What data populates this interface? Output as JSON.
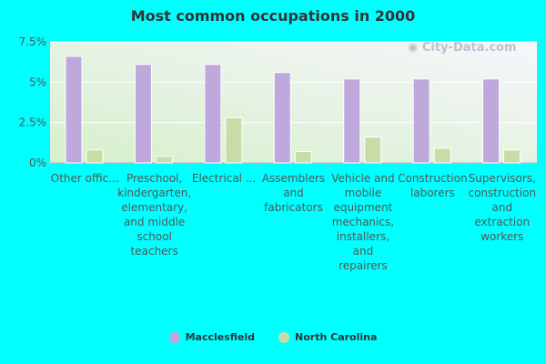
{
  "chart_data": {
    "type": "bar",
    "title": "Most common occupations in 2000",
    "watermark": "City-Data.com",
    "categories": [
      "Other offic...",
      "Preschool, kindergarten, elementary, and middle school teachers",
      "Electrical ...",
      "Assemblers and fabricators",
      "Vehicle and mobile equipment mechanics, installers, and repairers",
      "Construction laborers",
      "Supervisors, construction and extraction workers"
    ],
    "category_lines": [
      [
        "Other offic..."
      ],
      [
        "Preschool,",
        "kindergarten,",
        "elementary,",
        "and middle",
        "school",
        "teachers"
      ],
      [
        "Electrical ..."
      ],
      [
        "Assemblers",
        "and",
        "fabricators"
      ],
      [
        "Vehicle and",
        "mobile",
        "equipment",
        "mechanics,",
        "installers,",
        "and",
        "repairers"
      ],
      [
        "Construction",
        "laborers"
      ],
      [
        "Supervisors,",
        "construction",
        "and",
        "extraction",
        "workers"
      ]
    ],
    "series": [
      {
        "name": "Macclesfield",
        "color": "#bfa8dc",
        "values": [
          6.6,
          6.1,
          6.1,
          5.6,
          5.2,
          5.2,
          5.2
        ]
      },
      {
        "name": "North Carolina",
        "color": "#c8dca8",
        "values": [
          0.8,
          0.4,
          2.8,
          0.7,
          1.6,
          0.9,
          0.8
        ]
      }
    ],
    "ylim": [
      0,
      7.5
    ],
    "yticks": [
      0,
      2.5,
      5,
      7.5
    ],
    "ytick_labels": [
      "0%",
      "2.5%",
      "5%",
      "7.5%"
    ],
    "grid": true,
    "legend_position": "bottom"
  }
}
